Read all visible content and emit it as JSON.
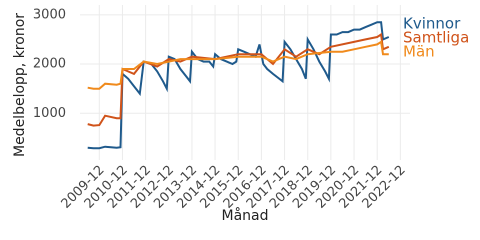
{
  "chart_data": {
    "type": "line",
    "y_label": "Medelbelopp, kronor",
    "x_label": "Månad",
    "xlim": [
      "2009-02",
      "2023-05"
    ],
    "xticks": [
      "2009-12",
      "2010-12",
      "2011-12",
      "2012-12",
      "2013-12",
      "2014-12",
      "2015-12",
      "2016-12",
      "2017-12",
      "2018-12",
      "2019-12",
      "2020-12",
      "2021-12",
      "2022-12"
    ],
    "ylim": [
      50,
      3200
    ],
    "yticks": [
      1000,
      2000,
      3000
    ],
    "grid": true,
    "legend": "right",
    "series": [
      {
        "name": "Kvinnor",
        "color": "#1f5a8c",
        "x": [
          "2009-06",
          "2009-09",
          "2009-12",
          "2010-03",
          "2010-06",
          "2010-09",
          "2010-11",
          "2010-12",
          "2011-03",
          "2011-06",
          "2011-09",
          "2011-11",
          "2012-03",
          "2012-06",
          "2012-09",
          "2012-11",
          "2012-12",
          "2013-03",
          "2013-06",
          "2013-09",
          "2013-11",
          "2013-12",
          "2014-03",
          "2014-06",
          "2014-09",
          "2014-11",
          "2014-12",
          "2015-03",
          "2015-06",
          "2015-09",
          "2015-11",
          "2015-12",
          "2016-03",
          "2016-06",
          "2016-09",
          "2016-11",
          "2017-01",
          "2017-03",
          "2017-06",
          "2017-11",
          "2017-12",
          "2018-03",
          "2018-06",
          "2018-09",
          "2018-11",
          "2018-12",
          "2019-03",
          "2019-06",
          "2019-09",
          "2019-11",
          "2019-12",
          "2020-03",
          "2020-06",
          "2020-09",
          "2020-12",
          "2021-03",
          "2021-06",
          "2021-09",
          "2021-12",
          "2022-02",
          "2022-03",
          "2022-06"
        ],
        "values": [
          300,
          290,
          290,
          320,
          310,
          300,
          310,
          1800,
          1700,
          1550,
          1400,
          2050,
          2000,
          1850,
          1650,
          1500,
          2150,
          2100,
          1900,
          1750,
          1650,
          2250,
          2100,
          2050,
          2050,
          1950,
          2200,
          2100,
          2050,
          2000,
          2050,
          2300,
          2250,
          2200,
          2150,
          2400,
          2000,
          1900,
          1800,
          1650,
          2450,
          2300,
          2100,
          1900,
          1700,
          2500,
          2300,
          2050,
          1850,
          1700,
          2600,
          2600,
          2650,
          2650,
          2700,
          2700,
          2750,
          2800,
          2850,
          2850,
          2500,
          2550
        ]
      },
      {
        "name": "Samtliga",
        "color": "#d0531a",
        "x": [
          "2009-06",
          "2009-09",
          "2009-12",
          "2010-03",
          "2010-09",
          "2010-11",
          "2010-12",
          "2011-06",
          "2011-11",
          "2012-06",
          "2012-12",
          "2013-06",
          "2013-12",
          "2014-12",
          "2015-12",
          "2016-12",
          "2017-06",
          "2017-12",
          "2018-06",
          "2018-12",
          "2019-06",
          "2019-12",
          "2020-12",
          "2021-06",
          "2021-12",
          "2022-02",
          "2022-03",
          "2022-06"
        ],
        "values": [
          780,
          750,
          760,
          950,
          900,
          900,
          1900,
          1800,
          2050,
          1950,
          2100,
          2050,
          2150,
          2100,
          2200,
          2200,
          2000,
          2300,
          2150,
          2300,
          2200,
          2350,
          2450,
          2500,
          2550,
          2600,
          2300,
          2350
        ]
      },
      {
        "name": "Män",
        "color": "#f08a1c",
        "x": [
          "2009-06",
          "2009-09",
          "2009-12",
          "2010-03",
          "2010-09",
          "2010-11",
          "2010-12",
          "2011-06",
          "2011-11",
          "2012-06",
          "2012-12",
          "2013-06",
          "2013-12",
          "2014-12",
          "2015-12",
          "2016-12",
          "2017-06",
          "2017-12",
          "2018-06",
          "2018-12",
          "2019-12",
          "2020-06",
          "2020-12",
          "2021-06",
          "2021-12",
          "2022-02",
          "2022-03",
          "2022-06"
        ],
        "values": [
          1520,
          1500,
          1500,
          1600,
          1580,
          1600,
          1900,
          1900,
          2050,
          2000,
          2050,
          2100,
          2100,
          2100,
          2150,
          2150,
          2050,
          2150,
          2100,
          2200,
          2250,
          2250,
          2300,
          2350,
          2400,
          2450,
          2200,
          2200
        ]
      }
    ]
  }
}
